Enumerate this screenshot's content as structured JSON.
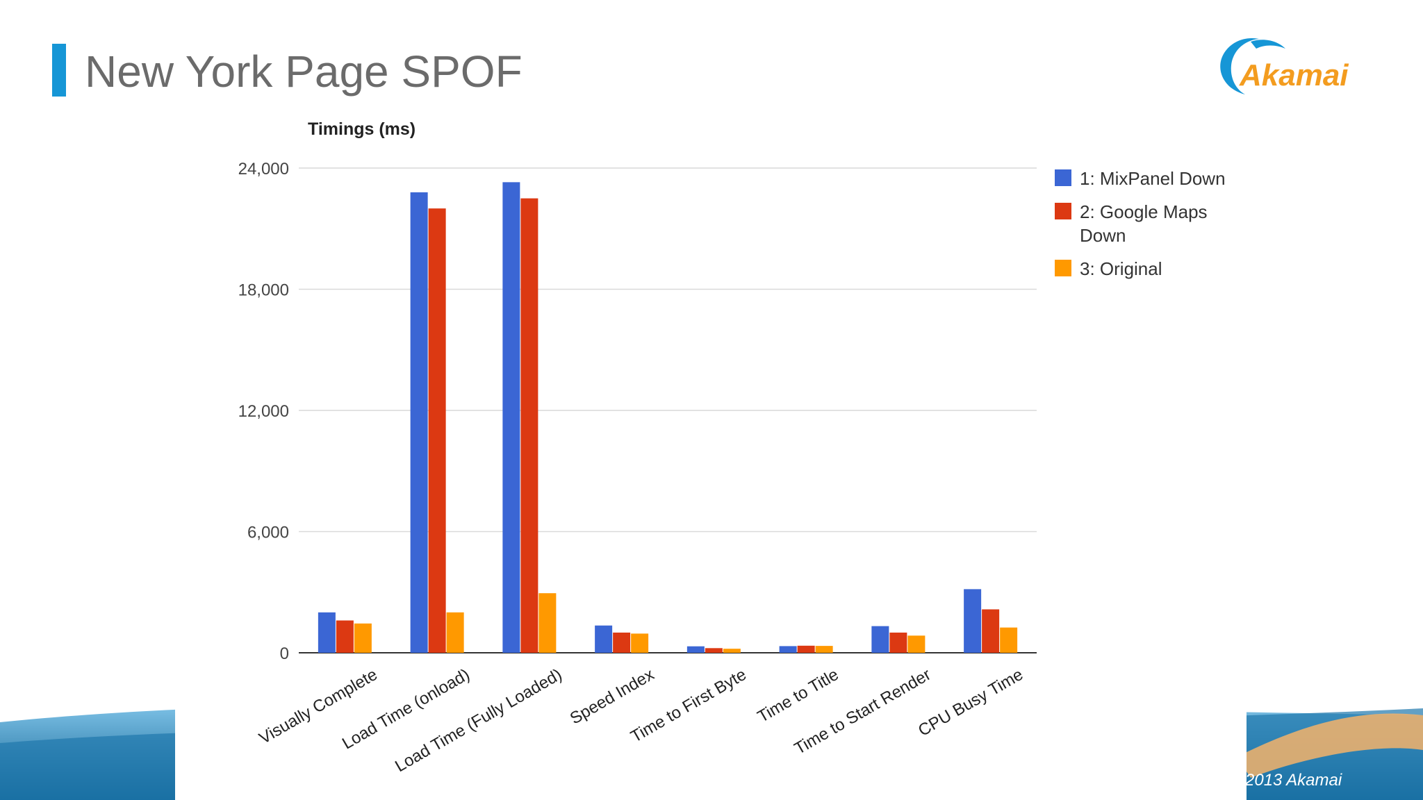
{
  "slide": {
    "title": "New York Page SPOF",
    "logo_text": "Akamai",
    "copyright": "2013 Akamai"
  },
  "colors": {
    "accent_bar": "#1696d6",
    "series": [
      "#3b66d4",
      "#dc3912",
      "#ff9900"
    ],
    "gridline": "#d9d9d9",
    "axis": "#333333"
  },
  "icons": {
    "logo": "akamai-wave-logo"
  },
  "chart_data": {
    "type": "bar",
    "title": "Timings (ms)",
    "xlabel": "",
    "ylabel": "",
    "ylim": [
      0,
      24000
    ],
    "yticks": [
      0,
      6000,
      12000,
      18000,
      24000
    ],
    "ytick_labels": [
      "0",
      "6,000",
      "12,000",
      "18,000",
      "24,000"
    ],
    "grid": true,
    "legend_position": "right",
    "categories": [
      "Visually Complete",
      "Load Time (onload)",
      "Load Time (Fully Loaded)",
      "Speed Index",
      "Time to First Byte",
      "Time to Title",
      "Time to Start Render",
      "CPU Busy Time"
    ],
    "series": [
      {
        "name": "1: MixPanel Down",
        "values": [
          2000,
          22800,
          23300,
          1350,
          320,
          330,
          1320,
          3150
        ]
      },
      {
        "name": "2: Google Maps Down",
        "values": [
          1600,
          22000,
          22500,
          1000,
          230,
          350,
          1000,
          2150
        ]
      },
      {
        "name": "3: Original",
        "values": [
          1450,
          2000,
          2950,
          950,
          200,
          340,
          850,
          1250
        ]
      }
    ]
  }
}
